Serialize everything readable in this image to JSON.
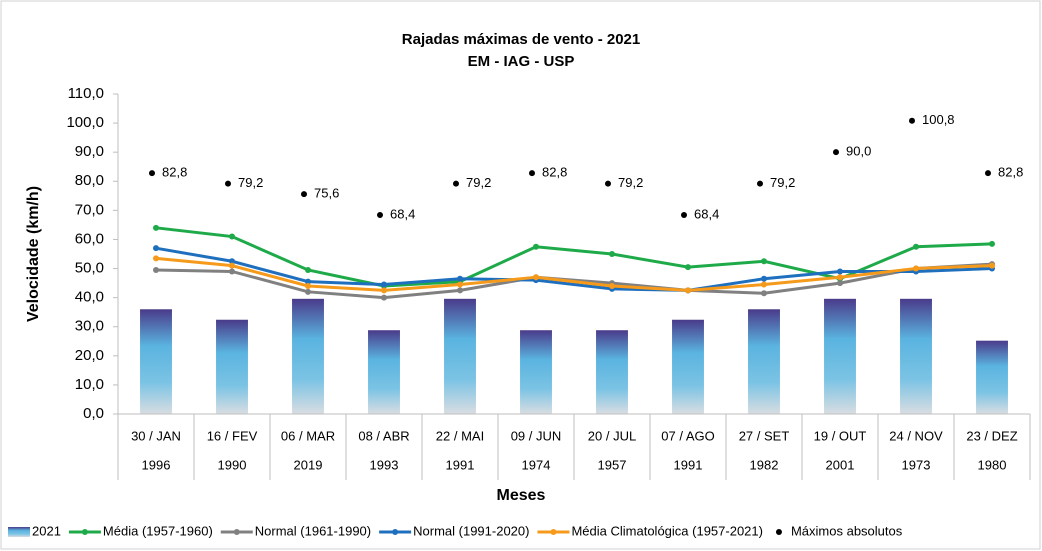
{
  "chart_data": {
    "type": "bar-line",
    "title": "Rajadas máximas de vento - 2021",
    "subtitle": "EM - IAG - USP",
    "x_label": "Meses",
    "y_label": "Velocidade (km/h)",
    "categories": [
      "30 / JAN",
      "16 / FEV",
      "06 / MAR",
      "08 / ABR",
      "22 / MAI",
      "09 / JUN",
      "20 / JUL",
      "07 / AGO",
      "27 / SET",
      "19 / OUT",
      "24 / NOV",
      "23 / DEZ"
    ],
    "category_years": [
      "1996",
      "1990",
      "2019",
      "1993",
      "1991",
      "1974",
      "1957",
      "1991",
      "1982",
      "2001",
      "1973",
      "1980"
    ],
    "ylim": [
      0,
      110
    ],
    "yticks": [
      {
        "value": 0,
        "label": "0,0"
      },
      {
        "value": 10,
        "label": "10,0"
      },
      {
        "value": 20,
        "label": "20,0"
      },
      {
        "value": 30,
        "label": "30,0"
      },
      {
        "value": 40,
        "label": "40,0"
      },
      {
        "value": 50,
        "label": "50,0"
      },
      {
        "value": 60,
        "label": "60,0"
      },
      {
        "value": 70,
        "label": "70,0"
      },
      {
        "value": 80,
        "label": "80,0"
      },
      {
        "value": 90,
        "label": "90,0"
      },
      {
        "value": 100,
        "label": "100,0"
      },
      {
        "value": 110,
        "label": "110,0"
      }
    ],
    "grid": false,
    "legend": "bottom",
    "series": [
      {
        "name": "2021",
        "kind": "bar",
        "color": "#5ab4e0",
        "values": [
          36.0,
          32.4,
          39.6,
          28.8,
          39.6,
          28.8,
          28.8,
          32.4,
          36.0,
          39.6,
          39.6,
          25.2
        ]
      },
      {
        "name": "Média (1957-1960)",
        "kind": "line",
        "color": "#1faa4a",
        "values": [
          64,
          61,
          49.5,
          44,
          45.5,
          57.5,
          55,
          50.5,
          52.5,
          46.5,
          57.5,
          58.5
        ]
      },
      {
        "name": "Normal (1961-1990)",
        "kind": "line",
        "color": "#808080",
        "values": [
          49.5,
          49,
          42,
          40,
          42.5,
          47,
          45,
          42.5,
          41.5,
          45,
          50,
          51.5
        ]
      },
      {
        "name": "Normal (1991-2020)",
        "kind": "line",
        "color": "#1f6fbf",
        "values": [
          57,
          52.5,
          45.5,
          44.5,
          46.5,
          46,
          43,
          42.5,
          46.5,
          49,
          49,
          50
        ]
      },
      {
        "name": "Média Climatológica (1957-2021)",
        "kind": "line",
        "color": "#f59a1b",
        "values": [
          53.5,
          51,
          44,
          42.5,
          44.5,
          47,
          44,
          42.5,
          44.5,
          47,
          50,
          51
        ]
      },
      {
        "name": "Máximos absolutos",
        "kind": "scatter",
        "color": "#000000",
        "values": [
          82.8,
          79.2,
          75.6,
          68.4,
          79.2,
          82.8,
          79.2,
          68.4,
          79.2,
          90.0,
          100.8,
          82.8
        ],
        "value_labels": [
          "82,8",
          "79,2",
          "75,6",
          "68,4",
          "79,2",
          "82,8",
          "79,2",
          "68,4",
          "79,2",
          "90,0",
          "100,8",
          "82,8"
        ]
      }
    ]
  }
}
